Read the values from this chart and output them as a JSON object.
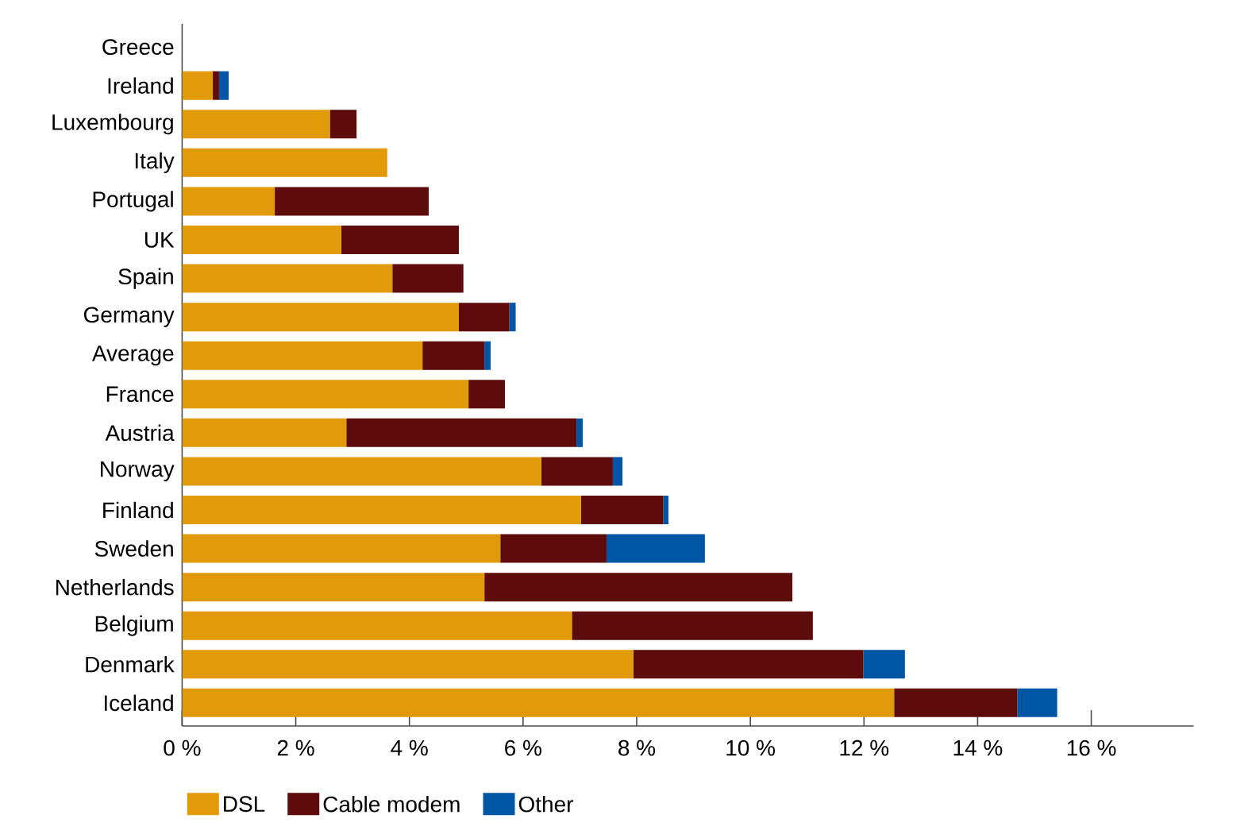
{
  "chart_data": {
    "type": "bar",
    "orientation": "horizontal",
    "stacked": true,
    "categories": [
      "Greece",
      "Ireland",
      "Luxembourg",
      "Italy",
      "Portugal",
      "UK",
      "Spain",
      "Germany",
      "Average",
      "France",
      "Austria",
      "Norway",
      "Finland",
      "Sweden",
      "Netherlands",
      "Belgium",
      "Denmark",
      "Iceland"
    ],
    "series": [
      {
        "name": "DSL",
        "color": "#e09a0a",
        "values": [
          0,
          0.54,
          2.6,
          3.61,
          1.63,
          2.8,
          3.7,
          4.87,
          4.23,
          5.04,
          2.89,
          6.32,
          7.02,
          5.6,
          5.32,
          6.86,
          7.94,
          12.53
        ]
      },
      {
        "name": "Cable modem",
        "color": "#5e0b0b",
        "values": [
          0,
          0.11,
          0.47,
          0,
          2.71,
          2.07,
          1.25,
          0.89,
          1.09,
          0.64,
          4.05,
          1.26,
          1.45,
          1.87,
          5.42,
          4.24,
          4.05,
          2.17
        ]
      },
      {
        "name": "Other",
        "color": "#0055a5",
        "values": [
          0,
          0.17,
          0,
          0,
          0,
          0,
          0,
          0.11,
          0.11,
          0,
          0.11,
          0.17,
          0.09,
          1.73,
          0,
          0,
          0.73,
          0.7
        ]
      }
    ],
    "xlim": [
      0,
      17.8
    ],
    "xticks": [
      {
        "value": 0,
        "label": "0 %"
      },
      {
        "value": 2,
        "label": "2 %"
      },
      {
        "value": 4,
        "label": "4 %"
      },
      {
        "value": 6,
        "label": "6 %"
      },
      {
        "value": 8,
        "label": "8 %"
      },
      {
        "value": 10,
        "label": "10 %"
      },
      {
        "value": 12,
        "label": "12 %"
      },
      {
        "value": 14,
        "label": "14 %"
      },
      {
        "value": 16,
        "label": "16 %"
      }
    ],
    "legend": "bottom left"
  }
}
